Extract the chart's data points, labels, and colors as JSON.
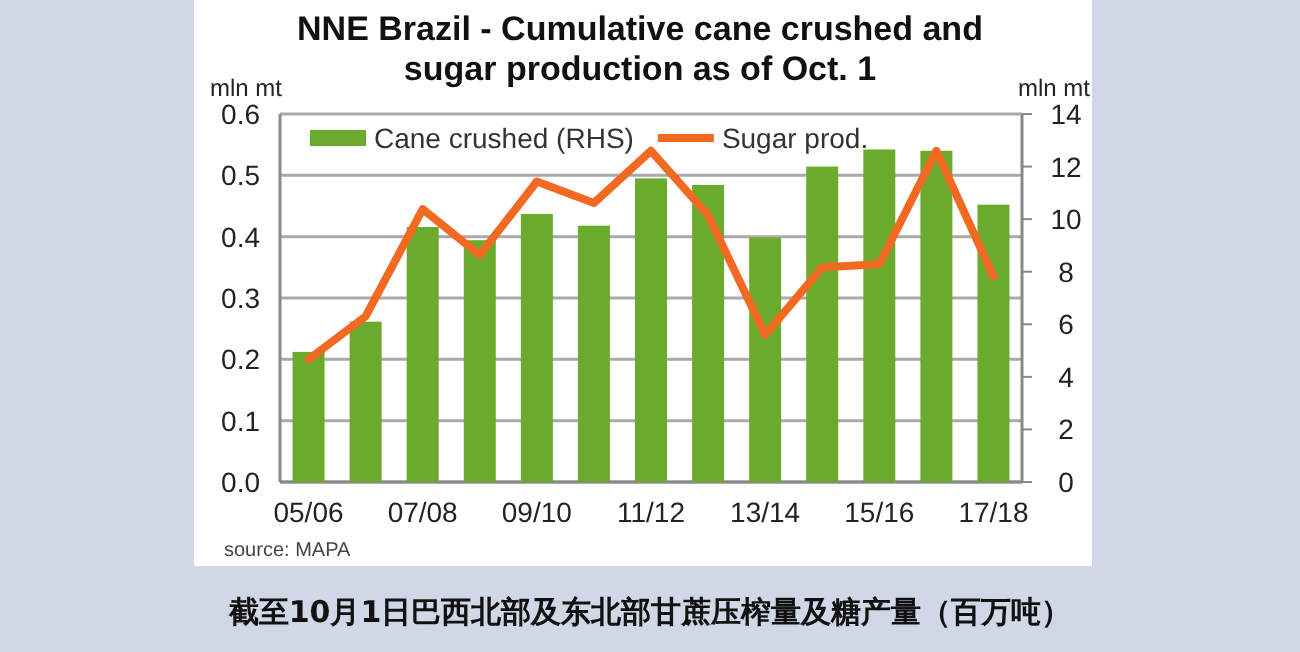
{
  "chart_data": {
    "type": "bar",
    "title": "NNE Brazil - Cumulative cane crushed and sugar production as of Oct. 1",
    "ylabel": "mln mt",
    "y2label": "mln mt",
    "categories": [
      "05/06",
      null,
      "07/08",
      null,
      "09/10",
      null,
      "11/12",
      null,
      "13/14",
      null,
      "15/16",
      null,
      "17/18"
    ],
    "series": [
      {
        "name": "Cane crushed (RHS)",
        "axis": "y2",
        "color": "#6aab2e",
        "values": [
          4.95,
          6.1,
          9.7,
          9.2,
          10.2,
          9.75,
          11.55,
          11.3,
          9.3,
          12.0,
          12.65,
          12.6,
          10.55
        ]
      },
      {
        "name": "Sugar prod.",
        "type": "line",
        "color": "#f26a21",
        "values": [
          0.2,
          0.27,
          0.445,
          0.37,
          0.49,
          0.455,
          0.54,
          0.435,
          0.24,
          0.35,
          0.355,
          0.54,
          0.335
        ]
      }
    ],
    "ylim": [
      0,
      0.6
    ],
    "yticks": [
      {
        "value": 0,
        "label": "0.0"
      },
      0.1,
      0.2,
      0.3,
      0.4,
      0.5,
      0.6
    ],
    "y2lim": [
      0,
      14
    ],
    "y2ticks": [
      0,
      2,
      4,
      6,
      8,
      10,
      12,
      14
    ],
    "grid": "y",
    "legend": "top",
    "marker": "none",
    "line_style": "solid",
    "annotations": [
      "source: MAPA",
      "截至10月1日巴西北部及东北部甘蔗压榨量及糖产量（百万吨）"
    ]
  }
}
